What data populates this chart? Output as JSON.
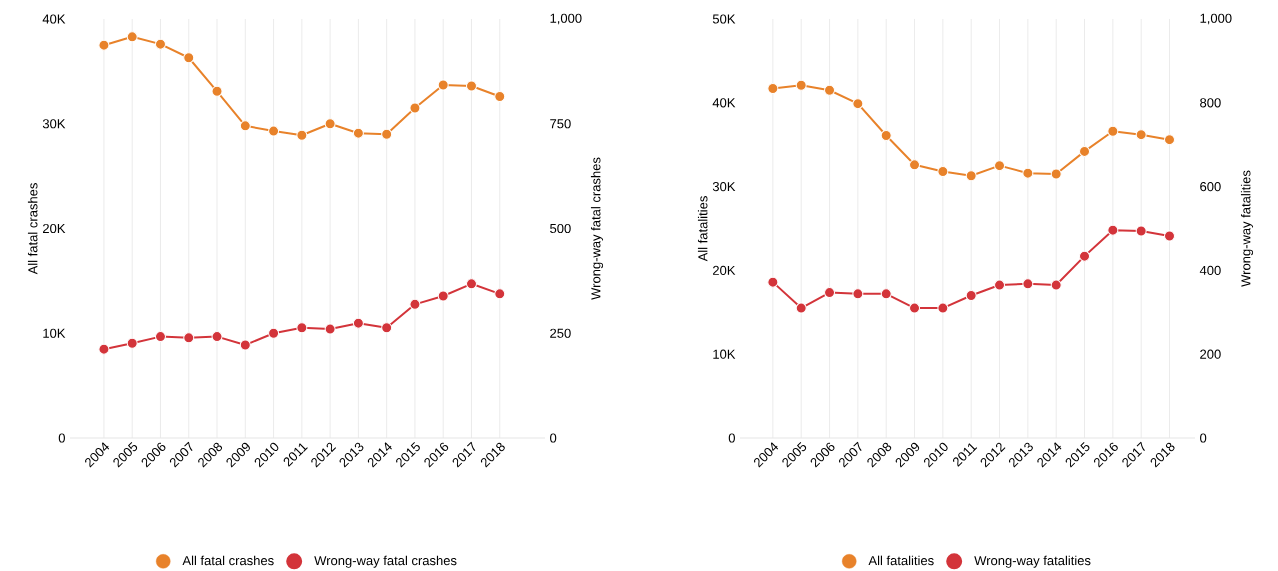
{
  "chart_data": [
    {
      "type": "line",
      "ylabel": "All fatal crashes",
      "y2label": "Wrong-way fatal crashes",
      "categories": [
        "2004",
        "2005",
        "2006",
        "2007",
        "2008",
        "2009",
        "2010",
        "2011",
        "2012",
        "2013",
        "2014",
        "2015",
        "2016",
        "2017",
        "2018"
      ],
      "series": [
        {
          "name": "All fatal crashes",
          "color": "#e8822a",
          "values": [
            37500,
            38300,
            37600,
            36300,
            33100,
            29800,
            29300,
            28900,
            30000,
            29100,
            29000,
            31500,
            33700,
            33600,
            32600
          ]
        },
        {
          "name": "Wrong-way fatal crashes",
          "color": "#d3343a",
          "axis": "y2",
          "values": [
            212,
            226,
            242,
            239,
            242,
            222,
            250,
            263,
            260,
            274,
            263,
            319,
            339,
            368,
            344
          ]
        }
      ],
      "ylim": [
        0,
        40000
      ],
      "yticks": [
        0,
        {
          "value": 10000,
          "label": "10K"
        },
        {
          "value": 20000,
          "label": "20K"
        },
        {
          "value": 30000,
          "label": "30K"
        },
        {
          "value": 40000,
          "label": "40K"
        }
      ],
      "y2lim": [
        0,
        1000
      ],
      "y2ticks": [
        0,
        250,
        500,
        750,
        {
          "value": 1000,
          "label": "1,000"
        }
      ],
      "grid": "x",
      "legend": "bottom",
      "marker": "circle"
    },
    {
      "type": "line",
      "ylabel": "All fatalities",
      "y2label": "Wrong-way fatalities",
      "categories": [
        "2004",
        "2005",
        "2006",
        "2007",
        "2008",
        "2009",
        "2010",
        "2011",
        "2012",
        "2013",
        "2014",
        "2015",
        "2016",
        "2017",
        "2018"
      ],
      "series": [
        {
          "name": "All fatalities",
          "color": "#e8822a",
          "values": [
            41700,
            42100,
            41500,
            39900,
            36100,
            32600,
            31800,
            31300,
            32500,
            31600,
            31500,
            34200,
            36600,
            36200,
            35600
          ]
        },
        {
          "name": "Wrong-way fatalities",
          "color": "#d3343a",
          "axis": "y2",
          "values": [
            372,
            310,
            347,
            344,
            344,
            310,
            310,
            340,
            365,
            368,
            365,
            434,
            496,
            494,
            482
          ]
        }
      ],
      "ylim": [
        0,
        50000
      ],
      "yticks": [
        0,
        {
          "value": 10000,
          "label": "10K"
        },
        {
          "value": 20000,
          "label": "20K"
        },
        {
          "value": 30000,
          "label": "30K"
        },
        {
          "value": 40000,
          "label": "40K"
        },
        {
          "value": 50000,
          "label": "50K"
        }
      ],
      "y2lim": [
        0,
        1000
      ],
      "y2ticks": [
        0,
        200,
        400,
        600,
        800,
        {
          "value": 1000,
          "label": "1,000"
        }
      ],
      "grid": "x",
      "legend": "bottom",
      "marker": "circle"
    }
  ]
}
